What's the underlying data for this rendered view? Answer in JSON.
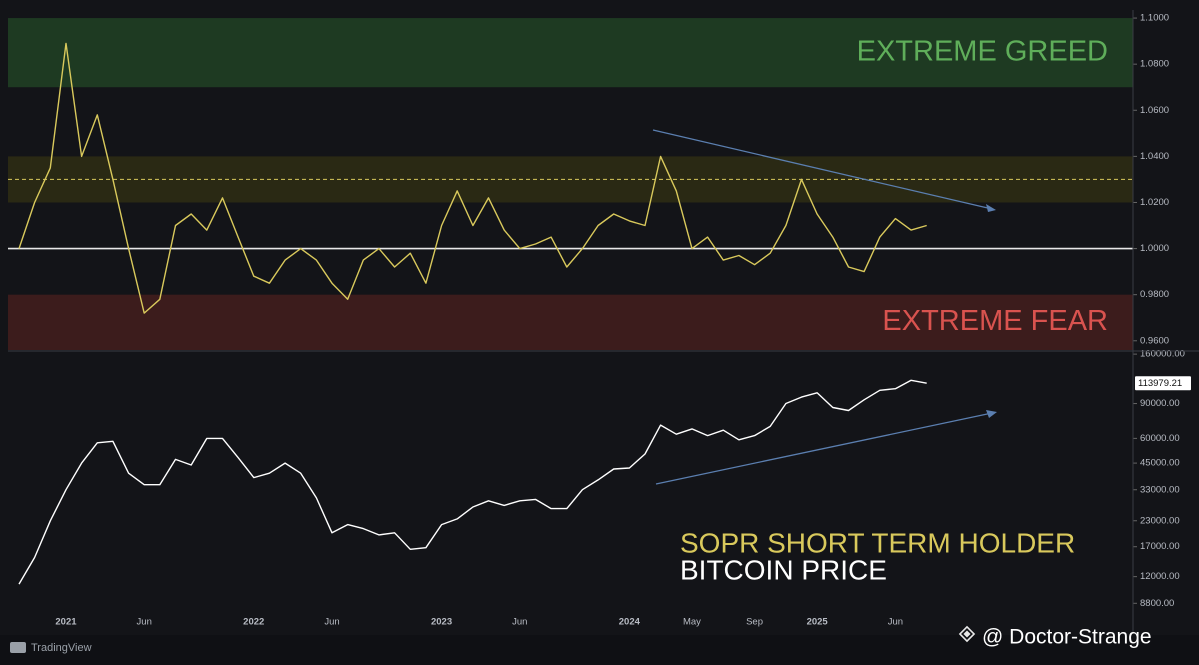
{
  "chart_data": [
    {
      "type": "line",
      "series": [
        {
          "name": "SOPR SHORT TERM HOLDER",
          "color": "#d9c95c",
          "values": [
            1.0,
            1.02,
            1.035,
            1.089,
            1.04,
            1.058,
            1.03,
            1.0,
            0.972,
            0.978,
            1.01,
            1.015,
            1.008,
            1.022,
            1.005,
            0.988,
            0.985,
            0.995,
            1.0,
            0.995,
            0.985,
            0.978,
            0.995,
            1.0,
            0.992,
            0.998,
            0.985,
            1.01,
            1.025,
            1.01,
            1.022,
            1.008,
            1.0,
            1.002,
            1.005,
            0.992,
            1.0,
            1.01,
            1.015,
            1.012,
            1.01,
            1.04,
            1.025,
            1.0,
            1.005,
            0.995,
            0.997,
            0.993,
            0.998,
            1.01,
            1.03,
            1.015,
            1.005,
            0.992,
            0.99,
            1.005,
            1.013,
            1.008,
            1.01
          ]
        }
      ],
      "ylim": [
        0.956,
        1.1035
      ],
      "yticks": [
        {
          "value": 1.1,
          "label": "1.1000"
        },
        {
          "value": 1.08,
          "label": "1.0800"
        },
        {
          "value": 1.06,
          "label": "1.0600"
        },
        {
          "value": 1.04,
          "label": "1.0400"
        },
        {
          "value": 1.02,
          "label": "1.0200"
        },
        {
          "value": 1.0,
          "label": "1.0000"
        },
        {
          "value": 0.98,
          "label": "0.9800"
        },
        {
          "value": 0.96,
          "label": "0.9600"
        }
      ],
      "bands": [
        {
          "from": 1.07,
          "to": 1.1,
          "color": "#1e3a22",
          "label": "EXTREME GREED",
          "label_color": "#5fae5a"
        },
        {
          "from": 1.02,
          "to": 1.04,
          "color": "#2a2914"
        },
        {
          "from": 0.956,
          "to": 0.98,
          "color": "#3c1c1c",
          "label": "EXTREME FEAR",
          "label_color": "#d9534f"
        }
      ],
      "lines": [
        {
          "value": 1.03,
          "color": "#d9c95c",
          "dashed": true
        },
        {
          "value": 1.0,
          "color": "#e8e8e8",
          "dashed": false
        }
      ]
    },
    {
      "type": "line",
      "log_scale": true,
      "categories": [
        null,
        null,
        null,
        "2021",
        null,
        null,
        null,
        null,
        "Jun",
        null,
        null,
        null,
        null,
        null,
        null,
        "2022",
        null,
        null,
        null,
        null,
        "Jun",
        null,
        null,
        null,
        null,
        null,
        null,
        "2023",
        null,
        null,
        null,
        null,
        "Jun",
        null,
        null,
        null,
        null,
        null,
        null,
        "2024",
        null,
        null,
        null,
        "May",
        null,
        null,
        null,
        "Sep",
        null,
        null,
        null,
        "2025",
        null,
        null,
        null,
        null,
        "Jun",
        null,
        null
      ],
      "series": [
        {
          "name": "BITCOIN PRICE",
          "color": "#ffffff",
          "values": [
            11000,
            15000,
            23000,
            33000,
            45000,
            57000,
            58000,
            40000,
            35000,
            35000,
            47000,
            44000,
            60000,
            60000,
            48000,
            38000,
            40000,
            45000,
            40000,
            30000,
            20000,
            22000,
            21000,
            19500,
            20000,
            16500,
            16800,
            22000,
            23500,
            27000,
            29000,
            27500,
            29000,
            29500,
            26500,
            26500,
            33000,
            37000,
            42000,
            42500,
            50000,
            70000,
            63000,
            67000,
            62000,
            66000,
            59000,
            62000,
            69000,
            90000,
            97000,
            102000,
            86000,
            83000,
            94000,
            105000,
            107000,
            118000,
            114000
          ]
        }
      ],
      "last_price": 113979.21,
      "ylim": [
        6300,
        164000
      ],
      "yticks": [
        {
          "value": 160000,
          "label": "160000.00"
        },
        {
          "value": 90000,
          "label": "90000.00"
        },
        {
          "value": 60000,
          "label": "60000.00"
        },
        {
          "value": 45000,
          "label": "45000.00"
        },
        {
          "value": 33000,
          "label": "33000.00"
        },
        {
          "value": 23000,
          "label": "23000.00"
        },
        {
          "value": 17000,
          "label": "17000.00"
        },
        {
          "value": 12000,
          "label": "12000.00"
        },
        {
          "value": 8800,
          "label": "8800.00"
        }
      ]
    }
  ],
  "branding": {
    "platform": "TradingView",
    "watermark": "@ Doctor-Strange"
  }
}
